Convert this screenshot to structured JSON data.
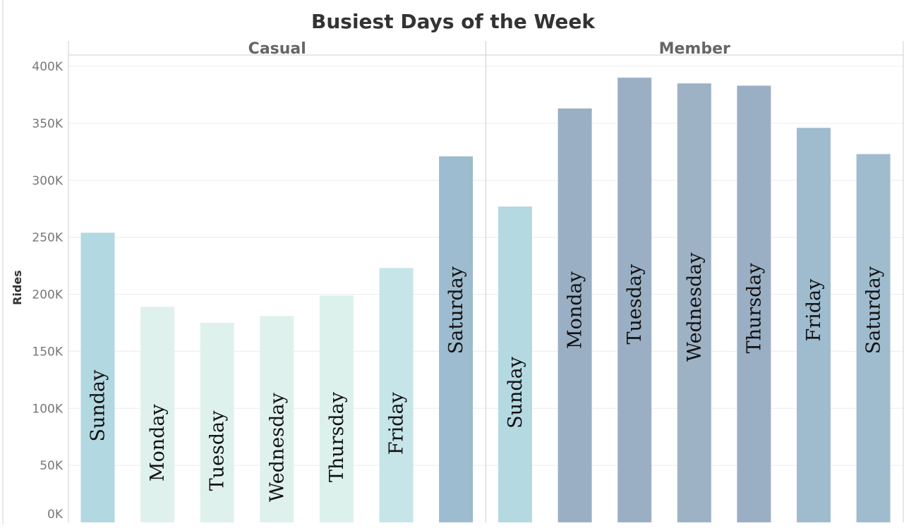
{
  "chart_data": {
    "type": "bar",
    "title": "Busiest Days of the Week",
    "ylabel": "Rides",
    "ylim": [
      0,
      400000
    ],
    "yticks": [
      {
        "value": 0,
        "label": "0K"
      },
      {
        "value": 50000,
        "label": "50K"
      },
      {
        "value": 100000,
        "label": "100K"
      },
      {
        "value": 150000,
        "label": "150K"
      },
      {
        "value": 200000,
        "label": "200K"
      },
      {
        "value": 250000,
        "label": "250K"
      },
      {
        "value": 300000,
        "label": "300K"
      },
      {
        "value": 350000,
        "label": "350K"
      },
      {
        "value": 400000,
        "label": "400K"
      }
    ],
    "categories": [
      "Sunday",
      "Monday",
      "Tuesday",
      "Wednesday",
      "Thursday",
      "Friday",
      "Saturday"
    ],
    "grid": true,
    "panels": [
      {
        "name": "Casual",
        "values": [
          254000,
          189000,
          175000,
          181000,
          199000,
          223000,
          321000
        ],
        "colors": [
          "#b2d8e2",
          "#dff1ec",
          "#dff1ec",
          "#dff1ec",
          "#dcf0ec",
          "#c5e5e9",
          "#9dbccf"
        ]
      },
      {
        "name": "Member",
        "values": [
          277000,
          363000,
          390000,
          385000,
          383000,
          346000,
          323000
        ],
        "colors": [
          "#b4d9e1",
          "#9aafc4",
          "#9aafc4",
          "#9eb2c6",
          "#9aafc4",
          "#9fbccf",
          "#9fbccf"
        ]
      }
    ]
  }
}
